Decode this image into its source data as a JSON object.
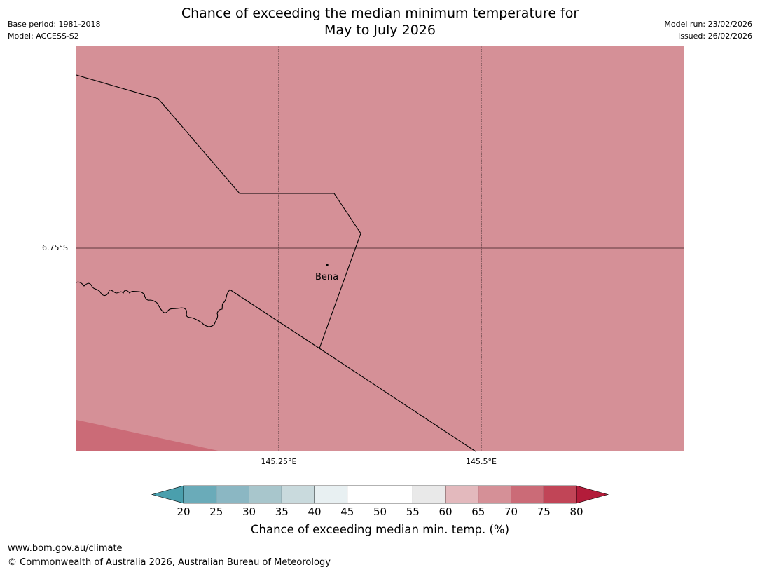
{
  "header": {
    "base_period": "Base period: 1981-2018",
    "model": "Model: ACCESS-S2",
    "model_run": "Model run: 23/02/2026",
    "issued": "Issued: 26/02/2026",
    "title_line1": "Chance of exceeding the median minimum temperature for",
    "title_line2": "May to July 2026"
  },
  "map": {
    "grid_labels": {
      "lat": "6.75°S",
      "lon_1": "145.25°E",
      "lon_2": "145.5°E"
    },
    "place": "Bena",
    "fill_colors": {
      "main": "#d59097",
      "lower_left": "#cb6b77",
      "border_line": "#000000",
      "gridline": "#000000"
    },
    "legend": {
      "title": "Chance of exceeding median min. temp. (%)",
      "ticks": [
        "20",
        "25",
        "30",
        "35",
        "40",
        "45",
        "50",
        "55",
        "60",
        "65",
        "70",
        "75",
        "80"
      ],
      "low_extend_color": "#4a9fad",
      "high_extend_color": "#b31c3a",
      "colors": [
        "#6aabb9",
        "#8bb7c3",
        "#a8c6cc",
        "#c9dadd",
        "#e8f0f2",
        "#ffffff",
        "#ffffff",
        "#e9e9e9",
        "#e3b9bd",
        "#d59097",
        "#cb6b77",
        "#c14557"
      ]
    }
  },
  "footer": {
    "url": "www.bom.gov.au/climate",
    "copyright": "© Commonwealth of Australia 2026, Australian Bureau of Meteorology"
  }
}
